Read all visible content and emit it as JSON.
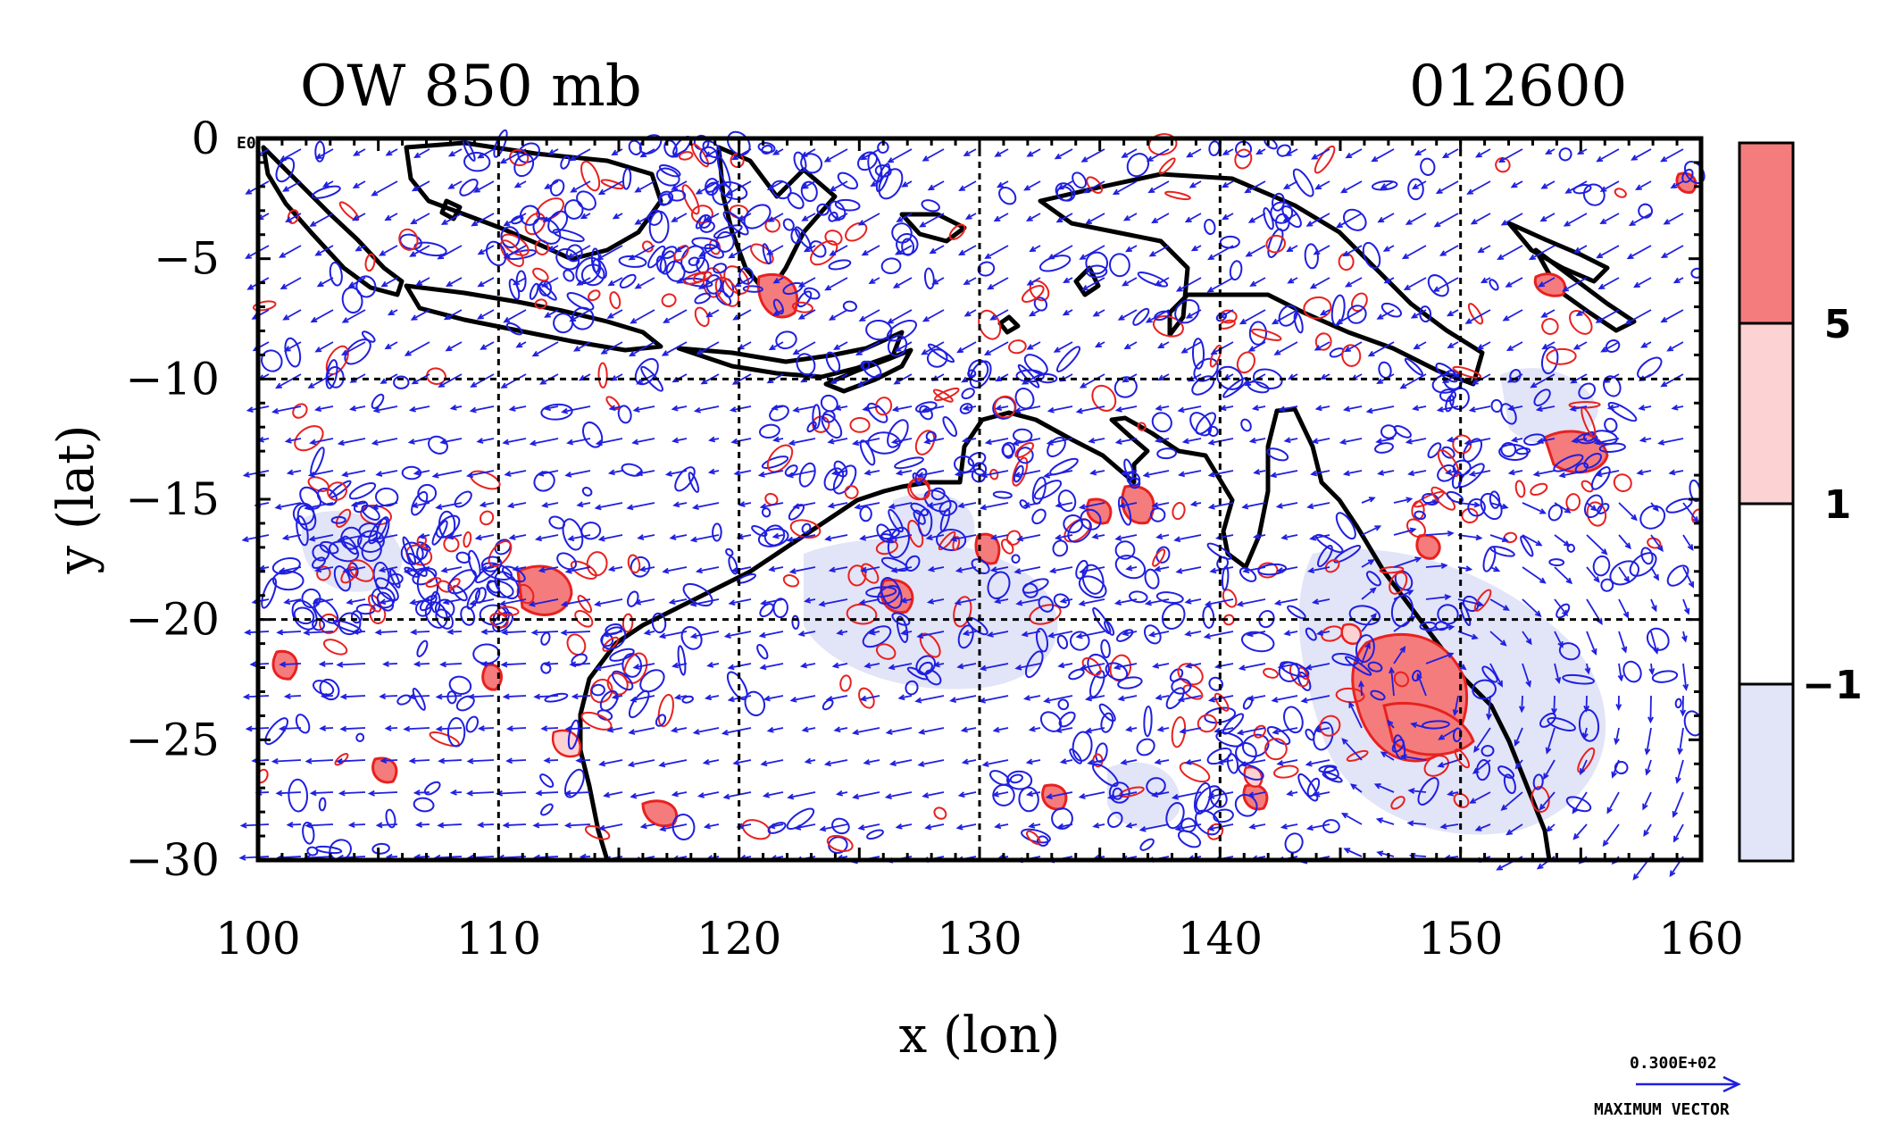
{
  "title_left": "OW 850 mb",
  "title_right": "012600",
  "corner_label": "E0",
  "axes": {
    "xlabel": "x (lon)",
    "ylabel": "y (lat)",
    "x_ticks": [
      "100",
      "110",
      "120",
      "130",
      "140",
      "150",
      "160"
    ],
    "y_ticks": [
      "0",
      "−5",
      "−10",
      "−15",
      "−20",
      "−25",
      "−30"
    ],
    "xlim": [
      100,
      160
    ],
    "ylim": [
      -30,
      0
    ],
    "grid_lon": [
      110,
      120,
      130,
      140,
      150
    ],
    "grid_lat": [
      -10,
      -20
    ]
  },
  "colorbar": {
    "labels": [
      "5",
      "1",
      "−1"
    ],
    "levels": [
      5,
      1,
      -1
    ],
    "colors": [
      "#f47c7c",
      "#fdd2d2",
      "#ffffff",
      "#e2e4f7"
    ]
  },
  "vector_key": {
    "value_label": "0.300E+02",
    "caption": "MAXIMUM VECTOR",
    "color": "#1f1fe0"
  },
  "colors": {
    "coast": "#000000",
    "positive_contour": "#e8211f",
    "negative_contour": "#1f1fe0",
    "positive_fill": "#f47c7c",
    "negative_fill": "#e2e4f7"
  }
}
